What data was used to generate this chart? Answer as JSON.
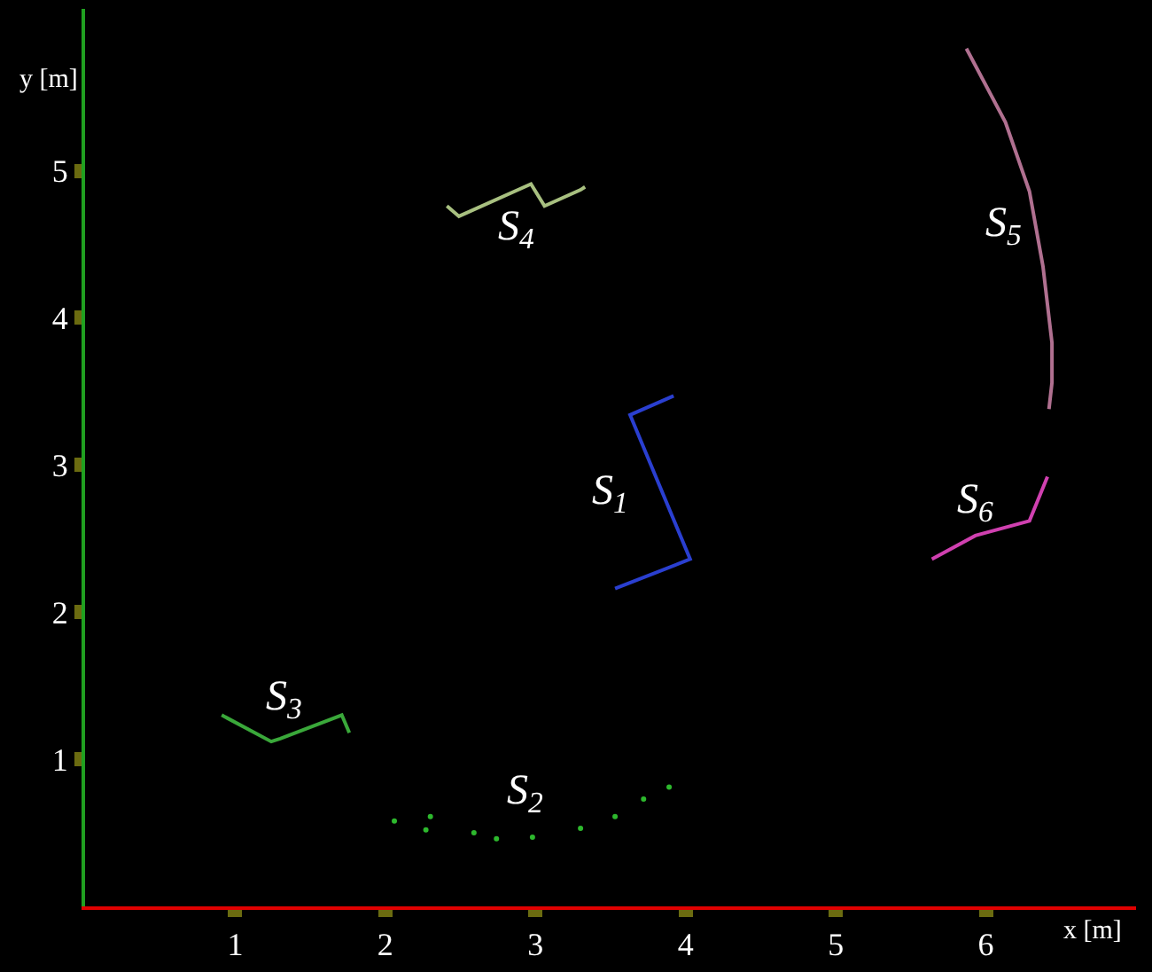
{
  "chart_data": {
    "type": "line",
    "xlabel": "x [m]",
    "ylabel": "y [m]",
    "xlim": [
      0,
      7.0
    ],
    "ylim": [
      0,
      6.1
    ],
    "xticks": [
      1,
      2,
      3,
      4,
      5,
      6
    ],
    "yticks": [
      1,
      2,
      3,
      4,
      5
    ],
    "grid": false,
    "legend": false,
    "marker": "none",
    "series": [
      {
        "name": "S$_{1}$",
        "color": "#2a3fd0",
        "x": [
          3.92,
          3.63,
          4.03,
          3.53
        ],
        "values": [
          3.47,
          3.34,
          2.36,
          2.16
        ]
      },
      {
        "name": "S$_{2}$",
        "color": "#2db82d",
        "type": "scatter",
        "x": [
          2.06,
          2.3,
          2.27,
          2.59,
          2.74,
          2.98,
          3.3,
          3.53,
          3.72,
          3.89
        ],
        "values": [
          0.58,
          0.61,
          0.52,
          0.5,
          0.46,
          0.47,
          0.53,
          0.61,
          0.73,
          0.81
        ]
      },
      {
        "name": "S$_{3}$",
        "color": "#3aa83a",
        "x": [
          0.91,
          1.24,
          1.3,
          1.71,
          1.76
        ],
        "values": [
          1.3,
          1.12,
          1.14,
          1.3,
          1.18
        ]
      },
      {
        "name": "S$_{4}$",
        "color": "#a8c080",
        "x": [
          2.41,
          2.49,
          2.97,
          3.06,
          3.3,
          3.33
        ],
        "values": [
          4.76,
          4.69,
          4.91,
          4.76,
          4.87,
          4.89
        ]
      },
      {
        "name": "S$_{5}$",
        "color": "#b07090",
        "x": [
          5.87,
          6.13,
          6.29,
          6.38,
          6.44,
          6.44,
          6.42
        ],
        "values": [
          5.83,
          5.33,
          4.86,
          4.35,
          3.83,
          3.56,
          3.38
        ]
      },
      {
        "name": "S$_{6}$",
        "color": "#d040b0",
        "x": [
          6.41,
          6.29,
          5.93,
          5.64
        ],
        "values": [
          2.92,
          2.62,
          2.52,
          2.36
        ]
      }
    ]
  }
}
